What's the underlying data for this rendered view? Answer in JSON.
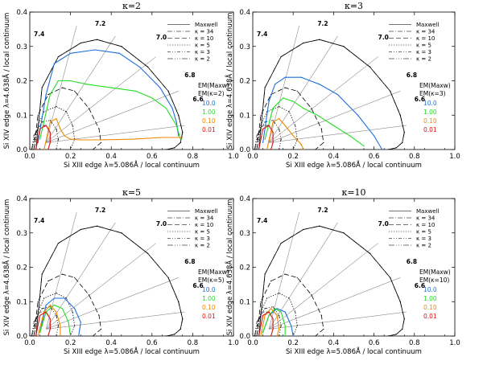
{
  "figure": {
    "xlabel": "Si XIII edge λ=5.086Å / local continuum",
    "ylabel": "Si XIV edge λ=4.638Å / local continuum",
    "xticks": [
      "0.0",
      "0.2",
      "0.4",
      "0.6",
      "0.8",
      "1.0"
    ],
    "yticks": [
      "0.0",
      "0.1",
      "0.2",
      "0.3",
      "0.4"
    ],
    "legend": [
      "Maxwell",
      "κ = 34",
      "κ = 10",
      "κ = 5",
      "κ = 3",
      "κ = 2"
    ],
    "em_title": "EM(Maxw)",
    "em_levels": [
      {
        "label": "10.0",
        "color": "#1e6fdc"
      },
      {
        "label": "1.00",
        "color": "#22dd22"
      },
      {
        "label": "0.10",
        "color": "#ee8800"
      },
      {
        "label": "0.01",
        "color": "#dd1111"
      }
    ],
    "temp_labels": [
      "7.4",
      "7.2",
      "7.0",
      "6.8",
      "6.6"
    ],
    "colors": {
      "grid": "#8c8c8c",
      "model": "#000000"
    }
  },
  "panels": [
    {
      "title": "κ=2",
      "em_sub": "EM(κ=2)"
    },
    {
      "title": "κ=3",
      "em_sub": "EM(κ=3)"
    },
    {
      "title": "κ=5",
      "em_sub": "EM(κ=5)"
    },
    {
      "title": "κ=10",
      "em_sub": "EM(κ=10)"
    }
  ],
  "chart_data": [
    {
      "type": "line",
      "title": "κ=2",
      "xlabel": "Si XIII edge λ=5.086Å / local continuum",
      "ylabel": "Si XIV edge λ=4.638Å / local continuum",
      "xlim": [
        0,
        1
      ],
      "ylim": [
        0,
        0.4
      ],
      "series": [
        {
          "name": "Maxwell",
          "x": [
            0.03,
            0.06,
            0.14,
            0.25,
            0.33,
            0.45,
            0.58,
            0.68,
            0.73,
            0.75,
            0.74,
            0.71,
            0.67
          ],
          "y": [
            0.0,
            0.18,
            0.27,
            0.31,
            0.32,
            0.3,
            0.24,
            0.17,
            0.1,
            0.05,
            0.02,
            0.005,
            0.0
          ]
        },
        {
          "name": "κ = 34",
          "x": [
            0.03,
            0.06,
            0.14,
            0.25,
            0.33,
            0.45,
            0.58,
            0.68,
            0.73,
            0.75,
            0.74,
            0.71,
            0.67
          ],
          "y": [
            0.0,
            0.18,
            0.27,
            0.31,
            0.32,
            0.3,
            0.24,
            0.17,
            0.1,
            0.05,
            0.02,
            0.005,
            0.0
          ]
        },
        {
          "name": "κ = 10",
          "x": [
            0.02,
            0.04,
            0.09,
            0.16,
            0.22,
            0.29,
            0.34,
            0.35,
            0.31
          ],
          "y": [
            0.0,
            0.1,
            0.16,
            0.18,
            0.17,
            0.12,
            0.06,
            0.02,
            0.0
          ]
        },
        {
          "name": "κ = 5",
          "x": [
            0.02,
            0.04,
            0.07,
            0.13,
            0.18,
            0.21,
            0.22,
            0.2
          ],
          "y": [
            0.0,
            0.07,
            0.11,
            0.125,
            0.11,
            0.07,
            0.03,
            0.0
          ]
        },
        {
          "name": "κ = 3",
          "x": [
            0.01,
            0.03,
            0.06,
            0.1,
            0.13,
            0.14,
            0.13
          ],
          "y": [
            0.0,
            0.05,
            0.08,
            0.085,
            0.06,
            0.03,
            0.0
          ]
        },
        {
          "name": "κ = 2",
          "x": [
            0.01,
            0.02,
            0.05,
            0.08,
            0.1,
            0.1,
            0.09
          ],
          "y": [
            0.0,
            0.04,
            0.07,
            0.07,
            0.05,
            0.02,
            0.0
          ]
        },
        {
          "name": "EM 10.0",
          "x": [
            0.04,
            0.08,
            0.12,
            0.2,
            0.32,
            0.44,
            0.54,
            0.64,
            0.7,
            0.72,
            0.73
          ],
          "y": [
            0.02,
            0.16,
            0.25,
            0.28,
            0.29,
            0.28,
            0.24,
            0.18,
            0.12,
            0.08,
            0.04
          ]
        },
        {
          "name": "EM 1.00",
          "x": [
            0.05,
            0.1,
            0.14,
            0.2,
            0.28,
            0.4,
            0.52,
            0.6,
            0.67,
            0.72,
            0.74
          ],
          "y": [
            0.03,
            0.16,
            0.2,
            0.2,
            0.19,
            0.18,
            0.17,
            0.15,
            0.12,
            0.07,
            0.03
          ]
        },
        {
          "name": "EM 0.10",
          "x": [
            0.07,
            0.1,
            0.13,
            0.15,
            0.17,
            0.2,
            0.25,
            0.35,
            0.5,
            0.65,
            0.75
          ],
          "y": [
            0.0,
            0.08,
            0.09,
            0.06,
            0.04,
            0.03,
            0.028,
            0.028,
            0.03,
            0.035,
            0.035
          ]
        },
        {
          "name": "EM 0.01",
          "x": [
            0.03,
            0.05,
            0.08,
            0.1,
            0.1,
            0.09
          ],
          "y": [
            0.0,
            0.06,
            0.07,
            0.05,
            0.02,
            0.0
          ]
        }
      ]
    },
    {
      "type": "line",
      "title": "κ=3",
      "xlabel": "Si XIII edge λ=5.086Å / local continuum",
      "ylabel": "Si XIV edge λ=4.638Å / local continuum",
      "xlim": [
        0,
        1
      ],
      "ylim": [
        0,
        0.4
      ],
      "series": [
        {
          "name": "Maxwell",
          "x": [
            0.03,
            0.06,
            0.14,
            0.25,
            0.33,
            0.45,
            0.58,
            0.68,
            0.73,
            0.75,
            0.74,
            0.71,
            0.67
          ],
          "y": [
            0.0,
            0.18,
            0.27,
            0.31,
            0.32,
            0.3,
            0.24,
            0.17,
            0.1,
            0.05,
            0.02,
            0.005,
            0.0
          ]
        },
        {
          "name": "κ = 34",
          "x": [
            0.03,
            0.06,
            0.14,
            0.25,
            0.33,
            0.45,
            0.58,
            0.68,
            0.73,
            0.75,
            0.74,
            0.71,
            0.67
          ],
          "y": [
            0.0,
            0.18,
            0.27,
            0.31,
            0.32,
            0.3,
            0.24,
            0.17,
            0.1,
            0.05,
            0.02,
            0.005,
            0.0
          ]
        },
        {
          "name": "κ = 10",
          "x": [
            0.02,
            0.04,
            0.09,
            0.16,
            0.22,
            0.29,
            0.34,
            0.35,
            0.31
          ],
          "y": [
            0.0,
            0.1,
            0.16,
            0.18,
            0.17,
            0.12,
            0.06,
            0.02,
            0.0
          ]
        },
        {
          "name": "κ = 5",
          "x": [
            0.02,
            0.04,
            0.07,
            0.13,
            0.18,
            0.21,
            0.22,
            0.2
          ],
          "y": [
            0.0,
            0.07,
            0.11,
            0.125,
            0.11,
            0.07,
            0.03,
            0.0
          ]
        },
        {
          "name": "κ = 3",
          "x": [
            0.01,
            0.03,
            0.06,
            0.1,
            0.13,
            0.14,
            0.13
          ],
          "y": [
            0.0,
            0.05,
            0.08,
            0.085,
            0.06,
            0.03,
            0.0
          ]
        },
        {
          "name": "κ = 2",
          "x": [
            0.01,
            0.02,
            0.05,
            0.08,
            0.1,
            0.1,
            0.09
          ],
          "y": [
            0.0,
            0.04,
            0.07,
            0.07,
            0.05,
            0.02,
            0.0
          ]
        },
        {
          "name": "EM 10.0",
          "x": [
            0.05,
            0.08,
            0.11,
            0.16,
            0.24,
            0.33,
            0.42,
            0.52,
            0.6,
            0.64
          ],
          "y": [
            0.02,
            0.14,
            0.19,
            0.21,
            0.21,
            0.19,
            0.16,
            0.1,
            0.04,
            0.0
          ]
        },
        {
          "name": "EM 1.00",
          "x": [
            0.06,
            0.1,
            0.15,
            0.2,
            0.25,
            0.32,
            0.4,
            0.48,
            0.55
          ],
          "y": [
            0.03,
            0.12,
            0.15,
            0.14,
            0.12,
            0.1,
            0.07,
            0.04,
            0.01
          ]
        },
        {
          "name": "EM 0.10",
          "x": [
            0.07,
            0.1,
            0.13,
            0.16,
            0.2,
            0.24,
            0.25
          ],
          "y": [
            0.0,
            0.08,
            0.09,
            0.07,
            0.04,
            0.015,
            0.0
          ]
        },
        {
          "name": "EM 0.01",
          "x": [
            0.03,
            0.05,
            0.08,
            0.1,
            0.1,
            0.09
          ],
          "y": [
            0.0,
            0.06,
            0.07,
            0.05,
            0.02,
            0.0
          ]
        }
      ]
    },
    {
      "type": "line",
      "title": "κ=5",
      "xlabel": "Si XIII edge λ=5.086Å / local continuum",
      "ylabel": "Si XIV edge λ=4.638Å / local continuum",
      "xlim": [
        0,
        1
      ],
      "ylim": [
        0,
        0.4
      ],
      "series": [
        {
          "name": "Maxwell",
          "x": [
            0.03,
            0.06,
            0.14,
            0.25,
            0.33,
            0.45,
            0.58,
            0.68,
            0.73,
            0.75,
            0.74,
            0.71,
            0.67
          ],
          "y": [
            0.0,
            0.18,
            0.27,
            0.31,
            0.32,
            0.3,
            0.24,
            0.17,
            0.1,
            0.05,
            0.02,
            0.005,
            0.0
          ]
        },
        {
          "name": "κ = 34",
          "x": [
            0.03,
            0.06,
            0.14,
            0.25,
            0.33,
            0.45,
            0.58,
            0.68,
            0.73,
            0.75,
            0.74,
            0.71,
            0.67
          ],
          "y": [
            0.0,
            0.18,
            0.27,
            0.31,
            0.32,
            0.3,
            0.24,
            0.17,
            0.1,
            0.05,
            0.02,
            0.005,
            0.0
          ]
        },
        {
          "name": "κ = 10",
          "x": [
            0.02,
            0.04,
            0.09,
            0.16,
            0.22,
            0.29,
            0.34,
            0.35,
            0.31
          ],
          "y": [
            0.0,
            0.1,
            0.16,
            0.18,
            0.17,
            0.12,
            0.06,
            0.02,
            0.0
          ]
        },
        {
          "name": "κ = 5",
          "x": [
            0.02,
            0.04,
            0.07,
            0.13,
            0.18,
            0.21,
            0.22,
            0.2
          ],
          "y": [
            0.0,
            0.07,
            0.11,
            0.125,
            0.11,
            0.07,
            0.03,
            0.0
          ]
        },
        {
          "name": "κ = 3",
          "x": [
            0.01,
            0.03,
            0.06,
            0.1,
            0.13,
            0.14,
            0.13
          ],
          "y": [
            0.0,
            0.05,
            0.08,
            0.085,
            0.06,
            0.03,
            0.0
          ]
        },
        {
          "name": "κ = 2",
          "x": [
            0.01,
            0.02,
            0.05,
            0.08,
            0.1,
            0.1,
            0.09
          ],
          "y": [
            0.0,
            0.04,
            0.07,
            0.07,
            0.05,
            0.02,
            0.0
          ]
        },
        {
          "name": "EM 10.0",
          "x": [
            0.05,
            0.08,
            0.12,
            0.17,
            0.22,
            0.25,
            0.24
          ],
          "y": [
            0.01,
            0.09,
            0.11,
            0.11,
            0.08,
            0.04,
            0.0
          ]
        },
        {
          "name": "EM 1.00",
          "x": [
            0.05,
            0.08,
            0.12,
            0.16,
            0.19,
            0.2
          ],
          "y": [
            0.01,
            0.07,
            0.09,
            0.08,
            0.04,
            0.0
          ]
        },
        {
          "name": "EM 0.10",
          "x": [
            0.04,
            0.07,
            0.1,
            0.13,
            0.15,
            0.15
          ],
          "y": [
            0.0,
            0.07,
            0.09,
            0.07,
            0.03,
            0.0
          ]
        },
        {
          "name": "EM 0.01",
          "x": [
            0.03,
            0.05,
            0.08,
            0.1,
            0.1,
            0.09
          ],
          "y": [
            0.0,
            0.06,
            0.07,
            0.05,
            0.02,
            0.0
          ]
        }
      ]
    },
    {
      "type": "line",
      "title": "κ=10",
      "xlabel": "Si XIII edge λ=5.086Å / local continuum",
      "ylabel": "Si XIV edge λ=4.638Å / local continuum",
      "xlim": [
        0,
        1
      ],
      "ylim": [
        0,
        0.4
      ],
      "series": [
        {
          "name": "Maxwell",
          "x": [
            0.03,
            0.06,
            0.14,
            0.25,
            0.33,
            0.45,
            0.58,
            0.68,
            0.73,
            0.75,
            0.74,
            0.71,
            0.67
          ],
          "y": [
            0.0,
            0.18,
            0.27,
            0.31,
            0.32,
            0.3,
            0.24,
            0.17,
            0.1,
            0.05,
            0.02,
            0.005,
            0.0
          ]
        },
        {
          "name": "κ = 34",
          "x": [
            0.03,
            0.06,
            0.14,
            0.25,
            0.33,
            0.45,
            0.58,
            0.68,
            0.73,
            0.75,
            0.74,
            0.71,
            0.67
          ],
          "y": [
            0.0,
            0.18,
            0.27,
            0.31,
            0.32,
            0.3,
            0.24,
            0.17,
            0.1,
            0.05,
            0.02,
            0.005,
            0.0
          ]
        },
        {
          "name": "κ = 10",
          "x": [
            0.02,
            0.04,
            0.09,
            0.16,
            0.22,
            0.29,
            0.34,
            0.35,
            0.31
          ],
          "y": [
            0.0,
            0.1,
            0.16,
            0.18,
            0.17,
            0.12,
            0.06,
            0.02,
            0.0
          ]
        },
        {
          "name": "κ = 5",
          "x": [
            0.02,
            0.04,
            0.07,
            0.13,
            0.18,
            0.21,
            0.22,
            0.2
          ],
          "y": [
            0.0,
            0.07,
            0.11,
            0.125,
            0.11,
            0.07,
            0.03,
            0.0
          ]
        },
        {
          "name": "κ = 3",
          "x": [
            0.01,
            0.03,
            0.06,
            0.1,
            0.13,
            0.14,
            0.13
          ],
          "y": [
            0.0,
            0.05,
            0.08,
            0.085,
            0.06,
            0.03,
            0.0
          ]
        },
        {
          "name": "κ = 2",
          "x": [
            0.01,
            0.02,
            0.05,
            0.08,
            0.1,
            0.1,
            0.09
          ],
          "y": [
            0.0,
            0.04,
            0.07,
            0.07,
            0.05,
            0.02,
            0.0
          ]
        },
        {
          "name": "EM 10.0",
          "x": [
            0.05,
            0.08,
            0.12,
            0.16,
            0.19,
            0.2
          ],
          "y": [
            0.01,
            0.06,
            0.08,
            0.07,
            0.03,
            0.0
          ]
        },
        {
          "name": "EM 1.00",
          "x": [
            0.05,
            0.08,
            0.11,
            0.14,
            0.16,
            0.16
          ],
          "y": [
            0.01,
            0.06,
            0.08,
            0.07,
            0.03,
            0.0
          ]
        },
        {
          "name": "EM 0.10",
          "x": [
            0.04,
            0.06,
            0.09,
            0.12,
            0.13,
            0.12
          ],
          "y": [
            0.0,
            0.06,
            0.08,
            0.06,
            0.02,
            0.0
          ]
        },
        {
          "name": "EM 0.01",
          "x": [
            0.03,
            0.05,
            0.08,
            0.1,
            0.1,
            0.09
          ],
          "y": [
            0.0,
            0.06,
            0.07,
            0.05,
            0.02,
            0.0
          ]
        }
      ]
    }
  ]
}
